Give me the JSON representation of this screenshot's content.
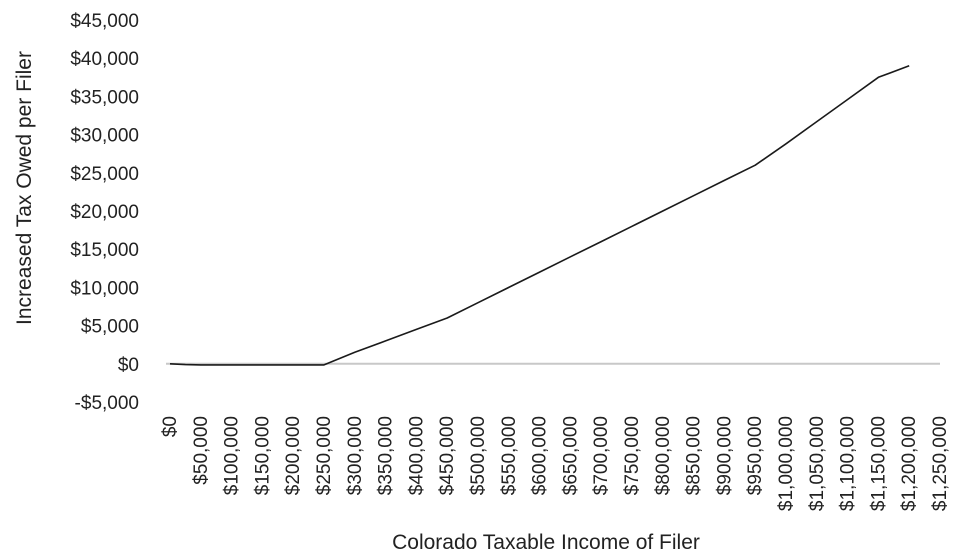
{
  "chart_data": {
    "type": "line",
    "xlabel": "Colorado Taxable Income of Filer",
    "ylabel": "Increased Tax Owed per Filer",
    "ylim": [
      -5000,
      45000
    ],
    "xlim": [
      0,
      1250000
    ],
    "y_ticks": [
      {
        "value": 45000,
        "label": "$45,000"
      },
      {
        "value": 40000,
        "label": "$40,000"
      },
      {
        "value": 35000,
        "label": "$35,000"
      },
      {
        "value": 30000,
        "label": "$30,000"
      },
      {
        "value": 25000,
        "label": "$25,000"
      },
      {
        "value": 20000,
        "label": "$20,000"
      },
      {
        "value": 15000,
        "label": "$15,000"
      },
      {
        "value": 10000,
        "label": "$10,000"
      },
      {
        "value": 5000,
        "label": "$5,000"
      },
      {
        "value": 0,
        "label": "$0"
      },
      {
        "value": -5000,
        "label": "-$5,000"
      }
    ],
    "x_ticks": [
      {
        "value": 0,
        "label": "$0"
      },
      {
        "value": 50000,
        "label": "$50,000"
      },
      {
        "value": 100000,
        "label": "$100,000"
      },
      {
        "value": 150000,
        "label": "$150,000"
      },
      {
        "value": 200000,
        "label": "$200,000"
      },
      {
        "value": 250000,
        "label": "$250,000"
      },
      {
        "value": 300000,
        "label": "$300,000"
      },
      {
        "value": 350000,
        "label": "$350,000"
      },
      {
        "value": 400000,
        "label": "$400,000"
      },
      {
        "value": 450000,
        "label": "$450,000"
      },
      {
        "value": 500000,
        "label": "$500,000"
      },
      {
        "value": 550000,
        "label": "$550,000"
      },
      {
        "value": 600000,
        "label": "$600,000"
      },
      {
        "value": 650000,
        "label": "$650,000"
      },
      {
        "value": 700000,
        "label": "$700,000"
      },
      {
        "value": 750000,
        "label": "$750,000"
      },
      {
        "value": 800000,
        "label": "$800,000"
      },
      {
        "value": 850000,
        "label": "$850,000"
      },
      {
        "value": 900000,
        "label": "$900,000"
      },
      {
        "value": 950000,
        "label": "$950,000"
      },
      {
        "value": 1000000,
        "label": "$1,000,000"
      },
      {
        "value": 1050000,
        "label": "$1,050,000"
      },
      {
        "value": 1100000,
        "label": "$1,100,000"
      },
      {
        "value": 1150000,
        "label": "$1,150,000"
      },
      {
        "value": 1200000,
        "label": "$1,200,000"
      },
      {
        "value": 1250000,
        "label": "$1,250,000"
      }
    ],
    "series": [
      {
        "color": "#1a1a1a",
        "points": [
          [
            0,
            0
          ],
          [
            25000,
            -100
          ],
          [
            50000,
            -150
          ],
          [
            100000,
            -150
          ],
          [
            150000,
            -150
          ],
          [
            200000,
            -150
          ],
          [
            250000,
            -150
          ],
          [
            300000,
            1500
          ],
          [
            350000,
            3000
          ],
          [
            400000,
            4500
          ],
          [
            450000,
            6000
          ],
          [
            500000,
            8000
          ],
          [
            550000,
            10000
          ],
          [
            600000,
            12000
          ],
          [
            650000,
            14000
          ],
          [
            700000,
            16000
          ],
          [
            750000,
            18000
          ],
          [
            800000,
            20000
          ],
          [
            850000,
            22000
          ],
          [
            900000,
            24000
          ],
          [
            950000,
            26000
          ],
          [
            1000000,
            28800
          ],
          [
            1050000,
            31700
          ],
          [
            1100000,
            34600
          ],
          [
            1150000,
            37500
          ],
          [
            1200000,
            39000
          ]
        ]
      }
    ],
    "zero_line": true,
    "grid": false,
    "legend": "none"
  }
}
